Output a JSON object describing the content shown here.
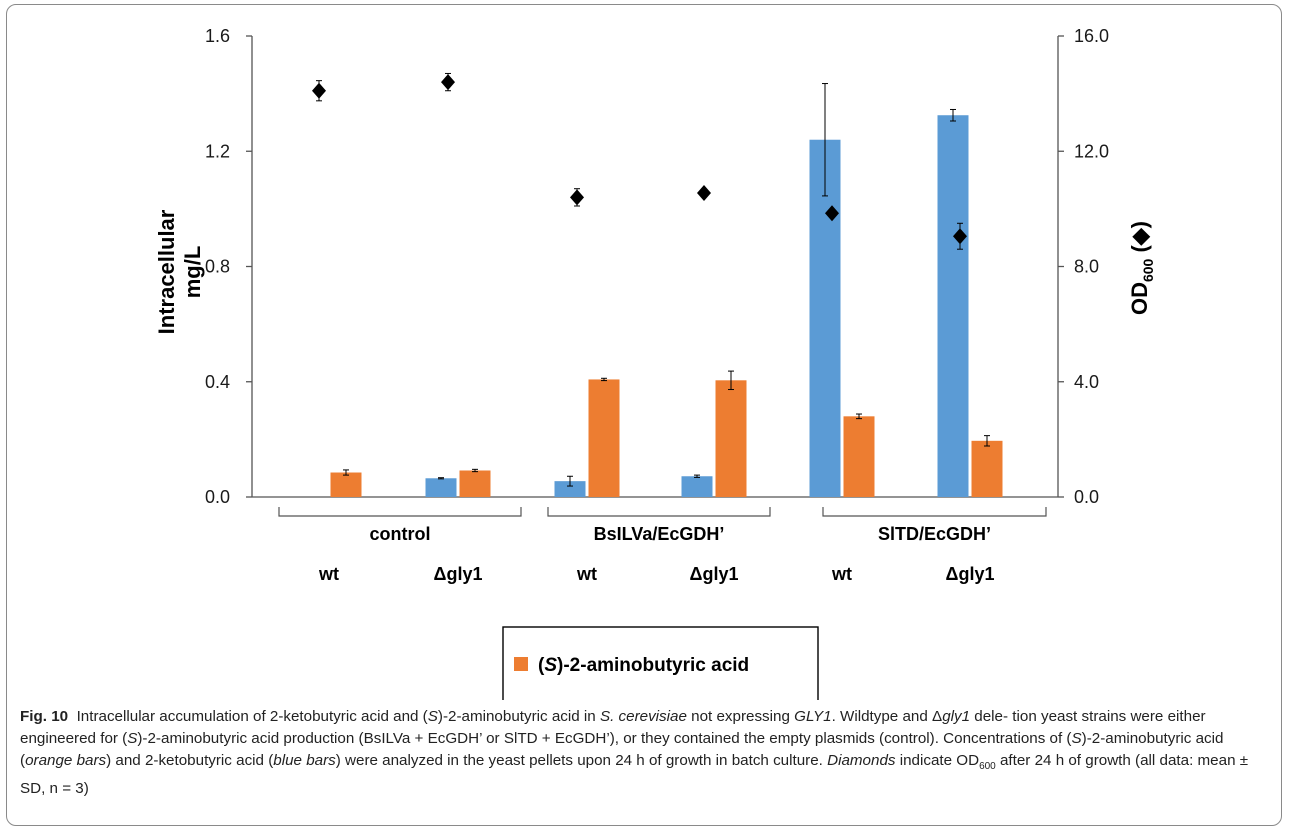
{
  "colors": {
    "ketobutyric": "#5b9bd5",
    "aminobutyric": "#ed7d31",
    "diamond": "#000000",
    "axis": "#555555"
  },
  "chart_data": {
    "type": "bar",
    "categories": [
      "wt",
      "Δgly1",
      "wt",
      "Δgly1",
      "wt",
      "Δgly1"
    ],
    "groups": [
      {
        "name": "control",
        "categories": [
          0,
          1
        ]
      },
      {
        "name": "BsILVa/EcGDH’",
        "categories": [
          2,
          3
        ]
      },
      {
        "name": "SlTD/EcGDH’",
        "categories": [
          4,
          5
        ]
      }
    ],
    "series": [
      {
        "name": "2-ketobutyric acid",
        "axis": "left",
        "color": "#5b9bd5",
        "values": [
          0.0,
          0.065,
          0.055,
          0.072,
          1.24,
          1.325
        ],
        "errors": [
          0.0,
          0.002,
          0.017,
          0.004,
          0.195,
          0.02
        ]
      },
      {
        "name": "(S)-2-aminobutyric acid",
        "axis": "left",
        "color": "#ed7d31",
        "values": [
          0.085,
          0.092,
          0.408,
          0.405,
          0.28,
          0.195
        ],
        "errors": [
          0.009,
          0.004,
          0.004,
          0.032,
          0.008,
          0.018
        ]
      },
      {
        "name": "OD600",
        "axis": "right",
        "marker": "diamond",
        "color": "#000000",
        "values": [
          14.1,
          14.4,
          10.4,
          10.55,
          9.85,
          9.05
        ],
        "errors": [
          0.35,
          0.3,
          0.3,
          0.05,
          0.05,
          0.45
        ]
      }
    ],
    "left_axis": {
      "ylim": [
        0.0,
        1.6
      ],
      "ticks": [
        "0.0",
        "0.4",
        "0.8",
        "1.2",
        "1.6"
      ],
      "label_line1": "Intracellular",
      "label_line2": "mg/L"
    },
    "right_axis": {
      "ylim": [
        0.0,
        16.0
      ],
      "ticks": [
        "0.0",
        "4.0",
        "8.0",
        "12.0",
        "16.0"
      ],
      "label_main": "OD",
      "label_sub": "600",
      "label_tail": " (◆)"
    },
    "legend": [
      {
        "label_prefix": "(",
        "label_italic": "S",
        "label_suffix": ")-2-aminobutyric acid",
        "color": "#ed7d31"
      },
      {
        "label": "2-ketobutyric acid",
        "color": "#5b9bd5"
      }
    ],
    "grid": false,
    "legend_position": "bottom-center"
  },
  "caption": {
    "label": "Fig. 10",
    "html": "Intracellular accumulation of 2-ketobutyric acid and (<i>S</i>)-2-aminobutyric acid in <i>S. cerevisiae</i> not expressing <i>GLY1</i>. Wildtype and Δ<i>gly1</i> dele- tion yeast strains were either engineered for (<i>S</i>)-2-aminobutyric acid production (BsILVa + EcGDH’ or SlTD + EcGDH’), or they contained the empty plasmids (control). Concentrations of (<i>S</i>)-2-aminobutyric acid (<i>orange bars</i>) and 2-ketobutyric acid (<i>blue bars</i>) were analyzed in the yeast pellets upon 24 h of growth in batch culture. <i>Diamonds</i> indicate OD<sub>600</sub> after 24 h of growth (all data: mean ± SD, n = 3)"
  }
}
